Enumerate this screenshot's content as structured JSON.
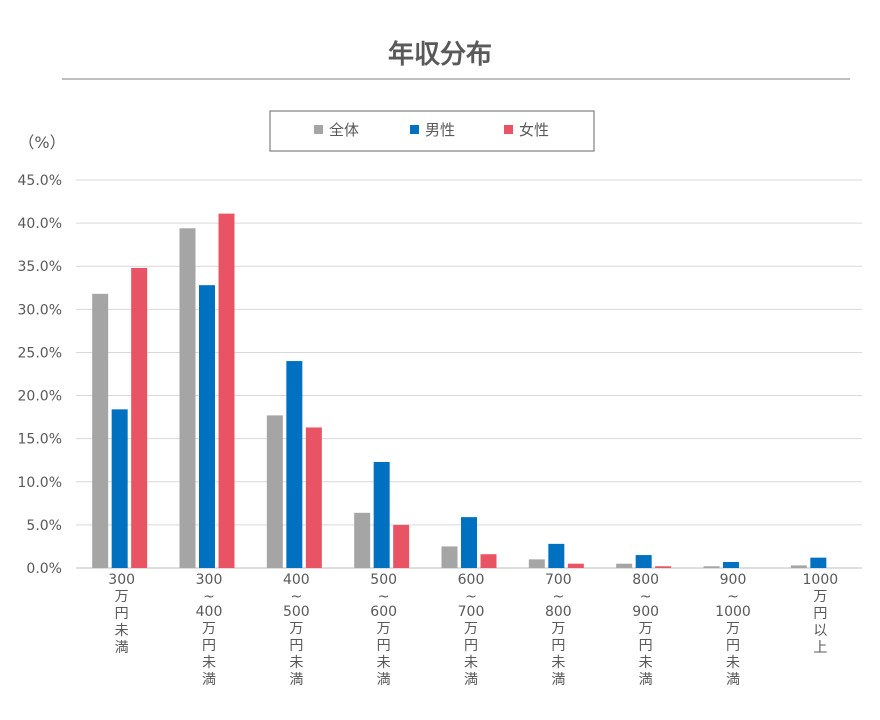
{
  "chart_data": {
    "type": "bar",
    "title": "年収分布",
    "ylabel": "（%）",
    "ylim": [
      0,
      45
    ],
    "yticks": [
      "0.0%",
      "5.0%",
      "10.0%",
      "15.0%",
      "20.0%",
      "25.0%",
      "30.0%",
      "35.0%",
      "40.0%",
      "45.0%"
    ],
    "categories": [
      [
        "300",
        "万",
        "円",
        "未",
        "満"
      ],
      [
        "300",
        "~",
        "400",
        "万",
        "円",
        "未",
        "満"
      ],
      [
        "400",
        "~",
        "500",
        "万",
        "円",
        "未",
        "満"
      ],
      [
        "500",
        "~",
        "600",
        "万",
        "円",
        "未",
        "満"
      ],
      [
        "600",
        "~",
        "700",
        "万",
        "円",
        "未",
        "満"
      ],
      [
        "700",
        "~",
        "800",
        "万",
        "円",
        "未",
        "満"
      ],
      [
        "800",
        "~",
        "900",
        "万",
        "円",
        "未",
        "満"
      ],
      [
        "900",
        "~",
        "1000",
        "万",
        "円",
        "未",
        "満"
      ],
      [
        "1000",
        "万",
        "円",
        "以",
        "上"
      ]
    ],
    "series": [
      {
        "name": "全体",
        "color": "#a5a5a5",
        "values": [
          31.8,
          39.4,
          17.7,
          6.4,
          2.5,
          1.0,
          0.5,
          0.2,
          0.3
        ]
      },
      {
        "name": "男性",
        "color": "#0070c0",
        "values": [
          18.4,
          32.8,
          24.0,
          12.3,
          5.9,
          2.8,
          1.5,
          0.7,
          1.2
        ]
      },
      {
        "name": "女性",
        "color": "#e85464",
        "values": [
          34.8,
          41.1,
          16.3,
          5.0,
          1.6,
          0.5,
          0.2,
          0.0,
          0.0
        ]
      }
    ],
    "grid": true,
    "legend_position": "top-center"
  }
}
